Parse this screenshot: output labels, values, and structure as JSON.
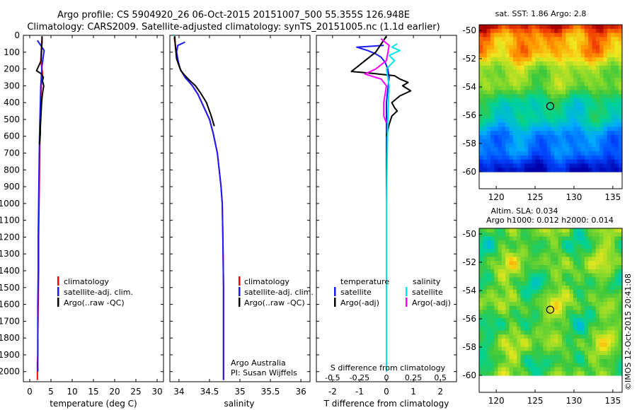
{
  "figure": {
    "title_line1": "Argo profile: CS 5904920_26 06-Oct-2015 20151007_500 55.355S 126.948E",
    "title_line2": "Climatology: CARS2009. Satellite-adjusted climatology: synTS_20151005.nc (1.1d earlier)",
    "side_stamp": "©IMOS 12-Oct-2015 20:41:08",
    "credit_line1": "Argo Australia",
    "credit_line2": "PI: Susan Wijffels"
  },
  "colors": {
    "climatology": "#ff0000",
    "satellite": "#1a1aff",
    "argo": "#000000",
    "salinity_satellite": "#00e5ee",
    "salinity_argo": "#ff00ff"
  },
  "legend_profiles": {
    "climatology": "climatology",
    "satellite_adj": "satellite-adj. clim.",
    "argo_raw": "Argo(..raw -QC)"
  },
  "legend_diff": {
    "temperature_head": "temperature",
    "salinity_head": "salinity",
    "satellite": "satellite",
    "argo_adj": "Argo(-adj)"
  },
  "chart_data": [
    {
      "type": "line",
      "id": "temperature-profile",
      "xlabel": "temperature (deg C)",
      "ylabel": "",
      "xlim": [
        -1.5,
        31.5
      ],
      "ylim": [
        2060,
        0
      ],
      "x_ticks": [
        "0",
        "5",
        "10",
        "15",
        "20",
        "25",
        "30"
      ],
      "x_tick_values": [
        0,
        5,
        10,
        15,
        20,
        25,
        30
      ],
      "y_ticks": [
        "0",
        "100",
        "200",
        "300",
        "400",
        "500",
        "600",
        "700",
        "800",
        "900",
        "1000",
        "1100",
        "1200",
        "1300",
        "1400",
        "1500",
        "1600",
        "1700",
        "1800",
        "1900",
        "2000"
      ],
      "y_tick_values": [
        0,
        100,
        200,
        300,
        400,
        500,
        600,
        700,
        800,
        900,
        1000,
        1100,
        1200,
        1300,
        1400,
        1500,
        1600,
        1700,
        1800,
        1900,
        2000
      ],
      "series": [
        {
          "name": "climatology",
          "x": [
            2.9,
            2.8,
            2.6,
            3.0,
            2.9,
            2.7,
            2.6,
            2.5,
            2.4,
            2.3,
            2.2,
            2.1,
            2.1,
            2.0,
            1.9,
            1.9,
            1.8,
            1.8
          ],
          "y": [
            10,
            50,
            150,
            220,
            260,
            300,
            400,
            500,
            600,
            800,
            1000,
            1200,
            1400,
            1600,
            1800,
            1900,
            1950,
            2050
          ]
        },
        {
          "name": "satellite-adj. clim.",
          "x": [
            1.8,
            2.6,
            3.4,
            2.9,
            2.7,
            2.6,
            2.5,
            2.4,
            2.3,
            2.2,
            2.1,
            2.0,
            2.0,
            1.9,
            1.9,
            1.9,
            1.9
          ],
          "y": [
            30,
            60,
            90,
            180,
            260,
            300,
            400,
            500,
            600,
            800,
            1000,
            1200,
            1400,
            1600,
            1800,
            1900,
            2000
          ]
        },
        {
          "name": "Argo(..raw -QC)",
          "x": [
            2.9,
            2.9,
            2.8,
            2.7,
            1.6,
            2.8,
            3.2,
            3.0,
            3.3,
            3.1,
            2.9,
            2.8,
            2.7,
            2.6,
            2.5,
            2.5,
            2.4,
            2.3
          ],
          "y": [
            5,
            40,
            80,
            150,
            210,
            230,
            250,
            270,
            300,
            330,
            370,
            400,
            450,
            500,
            550,
            580,
            620,
            650
          ]
        }
      ]
    },
    {
      "type": "line",
      "id": "salinity-profile",
      "xlabel": "salinity",
      "ylabel": "",
      "xlim": [
        33.85,
        36.15
      ],
      "ylim": [
        2060,
        0
      ],
      "x_ticks": [
        "34",
        "34.5",
        "35",
        "35.5",
        "36"
      ],
      "x_tick_values": [
        34,
        34.5,
        35,
        35.5,
        36
      ],
      "series": [
        {
          "name": "climatology",
          "x": [
            33.92,
            33.95,
            33.98,
            34.02,
            34.1,
            34.22,
            34.31,
            34.4,
            34.5,
            34.56,
            34.63,
            34.66,
            34.69,
            34.71,
            34.72,
            34.73,
            34.73
          ],
          "y": [
            10,
            80,
            150,
            200,
            250,
            300,
            350,
            420,
            500,
            580,
            700,
            800,
            900,
            1000,
            1200,
            1500,
            2050
          ]
        },
        {
          "name": "satellite-adj. clim.",
          "x": [
            34.1,
            33.98,
            33.96,
            33.99,
            34.02,
            34.1,
            34.22,
            34.31,
            34.4,
            34.5,
            34.56,
            34.63,
            34.66,
            34.69,
            34.71,
            34.72,
            34.73,
            34.73
          ],
          "y": [
            40,
            60,
            100,
            160,
            200,
            250,
            300,
            350,
            420,
            500,
            580,
            700,
            800,
            900,
            1000,
            1200,
            1500,
            2050
          ]
        },
        {
          "name": "Argo(..raw -QC)",
          "x": [
            33.93,
            33.94,
            33.96,
            34.03,
            34.1,
            34.18,
            34.27,
            34.35,
            34.45,
            34.52,
            34.58
          ],
          "y": [
            5,
            60,
            140,
            210,
            240,
            270,
            300,
            340,
            400,
            470,
            540
          ]
        }
      ]
    },
    {
      "type": "line",
      "id": "difference-profile",
      "xlabel": "T difference from climatology",
      "top_label": "S difference from climatology",
      "xlim": [
        -2.6,
        2.6
      ],
      "ylim": [
        2060,
        0
      ],
      "x_ticks": [
        "-2",
        "-1",
        "0",
        "1",
        "2"
      ],
      "x_tick_values": [
        -2,
        -1,
        0,
        1,
        2
      ],
      "s_ticks": [
        "-0.5",
        "-0.25",
        "0",
        "0.25",
        "0.5"
      ],
      "s_tick_values": [
        -0.5,
        -0.25,
        0,
        0.25,
        0.5
      ],
      "series": [
        {
          "name": "temperature satellite",
          "x": [
            -0.1,
            -1.1,
            -0.7,
            -0.4,
            -0.2,
            -0.05,
            0.05,
            0.1,
            0.05,
            0.0,
            0.0,
            0.0,
            0.0,
            0.0
          ],
          "y": [
            60,
            70,
            90,
            110,
            130,
            160,
            200,
            250,
            320,
            400,
            600,
            1000,
            1500,
            2000
          ]
        },
        {
          "name": "temperature Argo(-adj)",
          "x": [
            0.0,
            -0.4,
            -1.3,
            -0.6,
            0.3,
            0.5,
            0.8,
            0.6,
            0.9,
            0.5,
            0.2,
            0.3,
            0.4,
            0.2,
            0.1,
            0.0
          ],
          "y": [
            5,
            100,
            215,
            225,
            240,
            260,
            280,
            300,
            330,
            360,
            400,
            430,
            450,
            480,
            530,
            600
          ]
        },
        {
          "name": "salinity satellite",
          "x": [
            0.4,
            0.2,
            0.5,
            0.1,
            0.3,
            0.0,
            0.1,
            0.05,
            0.0,
            0.0,
            0.0
          ],
          "y": [
            50,
            70,
            90,
            120,
            150,
            200,
            300,
            500,
            1000,
            1500,
            2000
          ]
        },
        {
          "name": "salinity Argo(-adj)",
          "x": [
            -0.2,
            0.1,
            0.0,
            -0.4,
            -0.8,
            -0.2,
            0.0,
            -0.1,
            -0.1,
            0.0
          ],
          "y": [
            20,
            60,
            150,
            200,
            230,
            260,
            300,
            400,
            480,
            520
          ]
        }
      ]
    },
    {
      "type": "heatmap",
      "id": "sst-map",
      "title": "sat. SST: 1.86 Argo: 2.8",
      "x_ticks": [
        "120",
        "125",
        "130",
        "135"
      ],
      "x_tick_values": [
        120,
        125,
        130,
        135
      ],
      "y_ticks": [
        "-50",
        "-52",
        "-54",
        "-56",
        "-58",
        "-60"
      ],
      "y_tick_values": [
        -50,
        -52,
        -54,
        -56,
        -58,
        -60
      ],
      "xlim": [
        117.8,
        136.2
      ],
      "ylim": [
        -61.2,
        -49.6
      ],
      "data_ylim": [
        -60.0,
        -49.6
      ],
      "profile_marker": {
        "lon": 126.948,
        "lat": -55.355
      }
    },
    {
      "type": "heatmap",
      "id": "sla-map",
      "title_line1": "Altim. SLA: 0.034",
      "title_line2": "Argo h1000: 0.012 h2000: 0.014",
      "x_ticks": [
        "120",
        "125",
        "130",
        "135"
      ],
      "x_tick_values": [
        120,
        125,
        130,
        135
      ],
      "y_ticks": [
        "-50",
        "-52",
        "-54",
        "-56",
        "-58",
        "-60"
      ],
      "y_tick_values": [
        -50,
        -52,
        -54,
        -56,
        -58,
        -60
      ],
      "xlim": [
        117.8,
        136.2
      ],
      "ylim": [
        -61.2,
        -49.6
      ],
      "data_ylim": [
        -60.0,
        -49.6
      ],
      "profile_marker": {
        "lon": 126.948,
        "lat": -55.355
      }
    }
  ]
}
